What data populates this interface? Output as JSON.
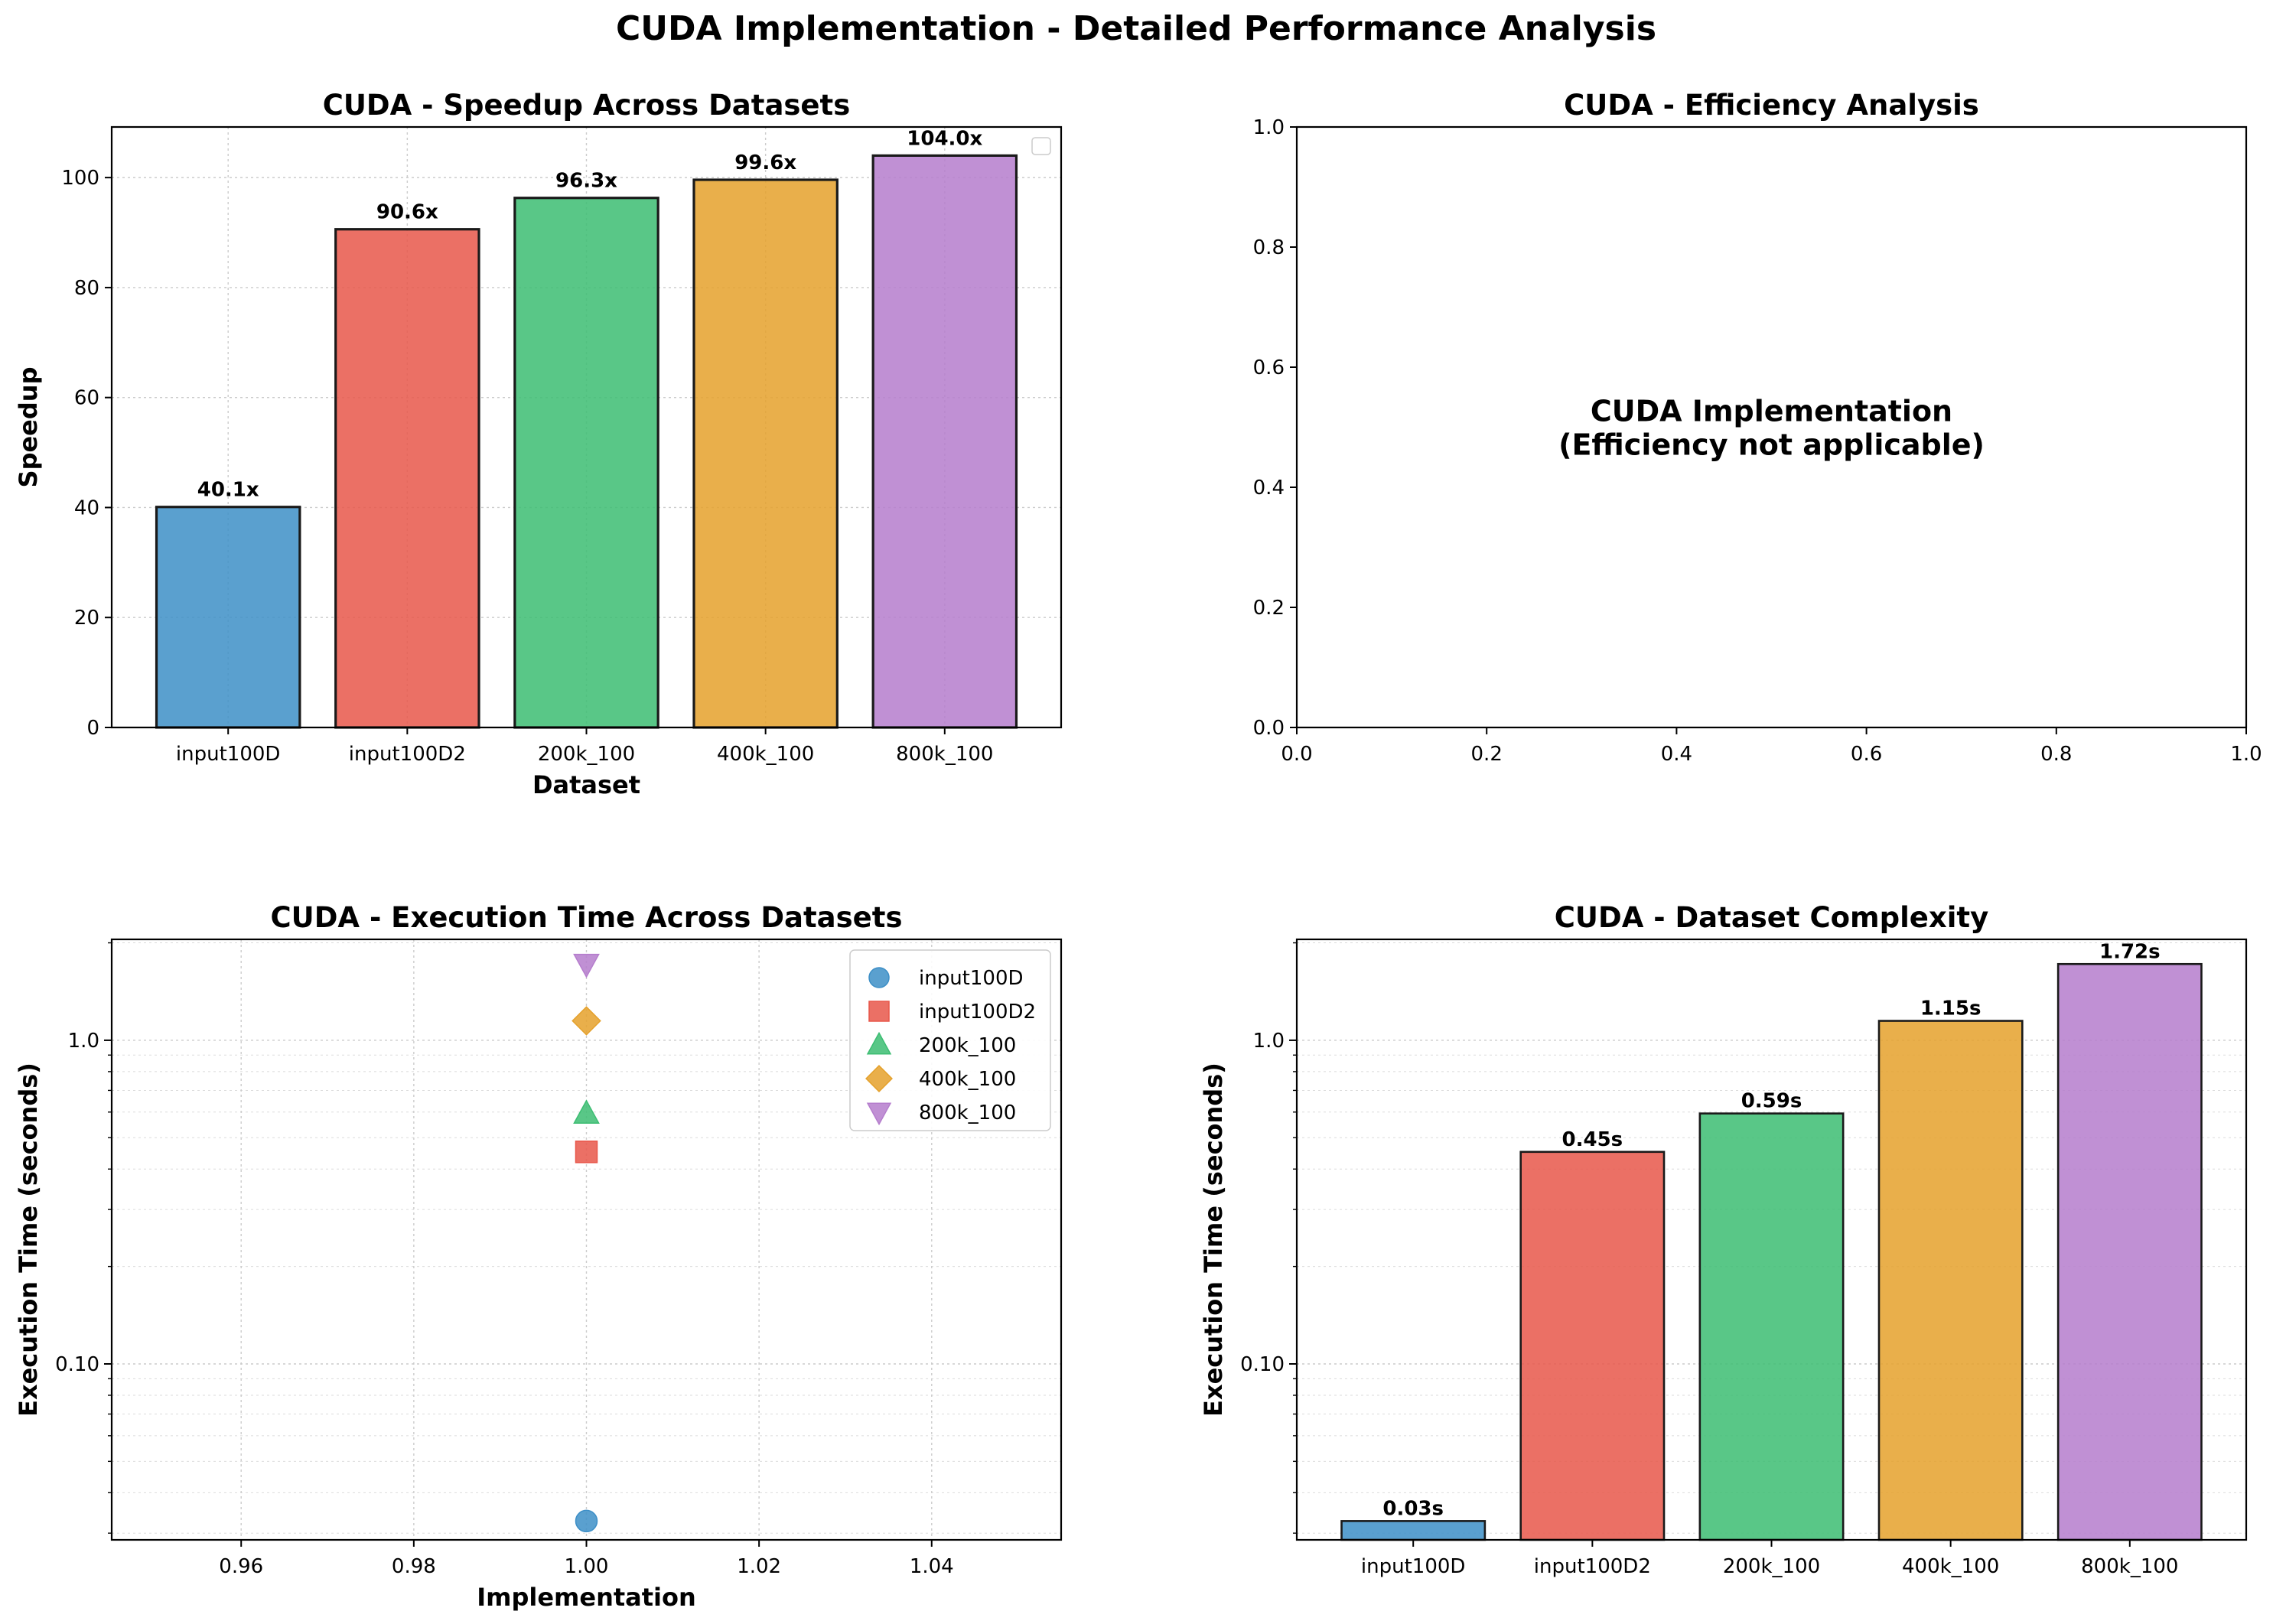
{
  "suptitle": "CUDA Implementation - Detailed Performance Analysis",
  "colors": {
    "input100D": "#3d8fc7",
    "input100D2": "#e8574a",
    "200k_100": "#3cbd72",
    "400k_100": "#e5a12c",
    "800k_100": "#b57dcd"
  },
  "chart_data": [
    {
      "id": "speedup",
      "type": "bar",
      "title": "CUDA - Speedup Across Datasets",
      "xlabel": "Dataset",
      "ylabel": "Speedup",
      "categories": [
        "input100D",
        "input100D2",
        "200k_100",
        "400k_100",
        "800k_100"
      ],
      "values": [
        40.1,
        90.6,
        96.3,
        99.6,
        104.0
      ],
      "data_labels": [
        "40.1x",
        "90.6x",
        "96.3x",
        "99.6x",
        "104.0x"
      ],
      "ylim": [
        0,
        109.2
      ],
      "yticks": [
        0,
        20,
        40,
        60,
        80,
        100
      ],
      "grid": true,
      "legend": "empty, upper right"
    },
    {
      "id": "efficiency",
      "type": "text",
      "title": "CUDA - Efficiency Analysis",
      "annotation": [
        "CUDA Implementation",
        "(Efficiency not applicable)"
      ],
      "xlim": [
        0,
        1
      ],
      "ylim": [
        0,
        1
      ],
      "xticks": [
        "0.0",
        "0.2",
        "0.4",
        "0.6",
        "0.8",
        "1.0"
      ],
      "yticks": [
        "0.0",
        "0.2",
        "0.4",
        "0.6",
        "0.8",
        "1.0"
      ]
    },
    {
      "id": "exec_time",
      "type": "scatter",
      "title": "CUDA - Execution Time Across Datasets",
      "xlabel": "Implementation",
      "ylabel": "Execution Time (seconds)",
      "yscale": "log",
      "xlim": [
        0.945,
        1.055
      ],
      "ylim": [
        0.0286,
        2.05
      ],
      "xticks": [
        "0.96",
        "0.98",
        "1.00",
        "1.02",
        "1.04"
      ],
      "yticks": [
        "0.10",
        "1.0"
      ],
      "grid": true,
      "legend": "upper right",
      "series": [
        {
          "name": "input100D",
          "marker": "circle",
          "x": 1.0,
          "y": 0.0327
        },
        {
          "name": "input100D2",
          "marker": "square",
          "x": 1.0,
          "y": 0.452
        },
        {
          "name": "200k_100",
          "marker": "triangle-up",
          "x": 1.0,
          "y": 0.594
        },
        {
          "name": "400k_100",
          "marker": "diamond",
          "x": 1.0,
          "y": 1.148
        },
        {
          "name": "800k_100",
          "marker": "triangle-down",
          "x": 1.0,
          "y": 1.72
        }
      ]
    },
    {
      "id": "complexity",
      "type": "bar",
      "title": "CUDA - Dataset Complexity",
      "ylabel": "Execution Time (seconds)",
      "yscale": "log",
      "categories": [
        "input100D",
        "input100D2",
        "200k_100",
        "400k_100",
        "800k_100"
      ],
      "values": [
        0.0327,
        0.452,
        0.594,
        1.148,
        1.72
      ],
      "data_labels": [
        "0.03s",
        "0.45s",
        "0.59s",
        "1.15s",
        "1.72s"
      ],
      "ylim": [
        0.0286,
        2.05
      ],
      "yticks": [
        "0.10",
        "1.0"
      ],
      "grid": true
    }
  ]
}
